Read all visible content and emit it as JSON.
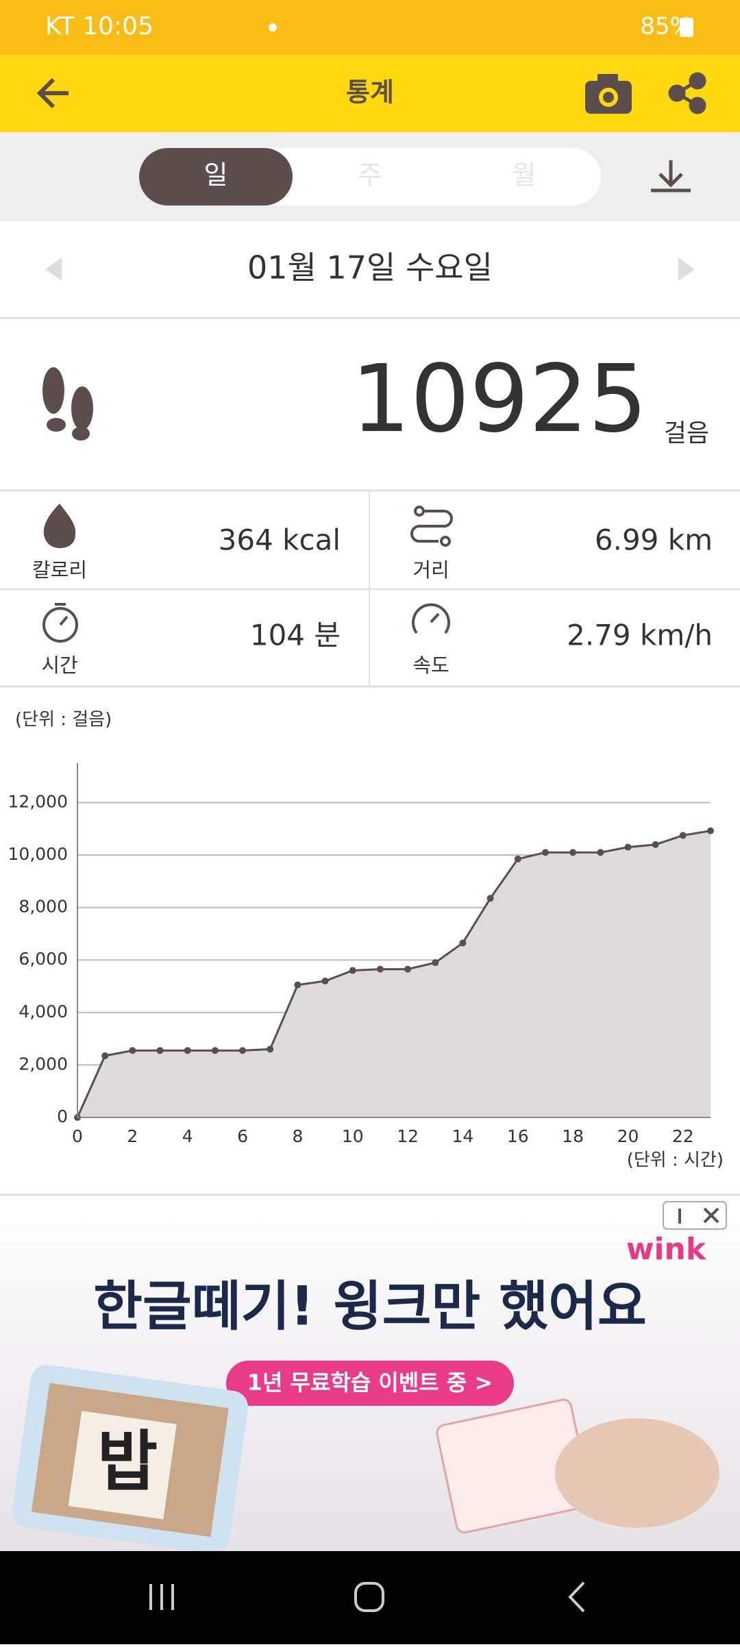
{
  "status_bar": {
    "carrier_time": "KT 10:05",
    "battery": "85%"
  },
  "header": {
    "title": "통계"
  },
  "tabs": [
    "일",
    "주",
    "월"
  ],
  "date": "01월 17일 수요일",
  "steps": {
    "value": "10925",
    "unit": "걸음"
  },
  "stats": [
    {
      "label": "칼로리",
      "value": "364 kcal"
    },
    {
      "label": "거리",
      "value": "6.99 km"
    },
    {
      "label": "시간",
      "value": "104 분"
    },
    {
      "label": "속도",
      "value": "2.79 km/h"
    }
  ],
  "chart_data": {
    "type": "area",
    "y_label": "(단위 : 걸음)",
    "x_label": "(단위 : 시간)",
    "x": [
      0,
      1,
      2,
      3,
      4,
      5,
      6,
      7,
      8,
      9,
      10,
      11,
      12,
      13,
      14,
      15,
      16,
      17,
      18,
      19,
      20,
      21,
      22,
      23
    ],
    "series": [
      {
        "color": "#5d4e4e",
        "values": [
          0,
          2350,
          2550,
          2550,
          2550,
          2550,
          2550,
          2600,
          5050,
          5200,
          5600,
          5650,
          5650,
          5900,
          6650,
          8350,
          9850,
          10100,
          10100,
          10100,
          10300,
          10400,
          10750,
          10925
        ]
      }
    ],
    "fill_color": "#dcdada",
    "xlim": [
      0,
      23
    ],
    "xticks": [
      0,
      2,
      4,
      6,
      8,
      10,
      12,
      14,
      16,
      18,
      20,
      22
    ],
    "ylim": [
      0,
      13500
    ],
    "yticks": [
      0,
      {
        "value": 2000,
        "label": "2,000"
      },
      {
        "value": 4000,
        "label": "4,000"
      },
      {
        "value": 6000,
        "label": "6,000"
      },
      {
        "value": 8000,
        "label": "8,000"
      },
      {
        "value": 10000,
        "label": "10,000"
      },
      {
        "value": 12000,
        "label": "12,000"
      }
    ],
    "grid": true
  },
  "ad": {
    "logo": "wink",
    "headline": "한글떼기! 윙크만 했어요",
    "button": "1년 무료학습 이벤트 중 >",
    "image_text": "밥"
  }
}
